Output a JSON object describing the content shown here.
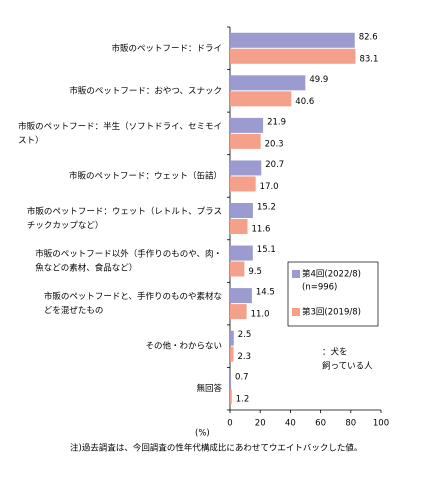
{
  "chart_data": {
    "type": "hbar",
    "categories": [
      [
        "市販のペットフード：ドライ"
      ],
      [
        "市販のペットフード：おやつ、スナック"
      ],
      [
        "市販のペットフード：半生（ソフトドライ、セミモイ",
        "スト）"
      ],
      [
        "市販のペットフード：ウェット（缶詰）"
      ],
      [
        "市販のペットフード：ウェット（レトルト、プラス",
        "チックカップなど）"
      ],
      [
        "市販のペットフード以外（手作りのものや、肉・",
        "魚などの素材、食品など）"
      ],
      [
        "市販のペットフードと、手作りのものや素材な",
        "どを混ぜたもの"
      ],
      [
        "その他・わからない"
      ],
      [
        "無回答"
      ]
    ],
    "series": [
      {
        "name": "第4回(2022/8)",
        "note": "(n=996)",
        "color": "#9b9bd0",
        "values": [
          82.6,
          49.9,
          21.9,
          20.7,
          15.2,
          15.1,
          14.5,
          2.5,
          0.7
        ],
        "value_labels": [
          "82.6",
          "49.9",
          "21.9",
          "20.7",
          "15.2",
          "15.1",
          "14.5",
          "2.5",
          "0.7"
        ]
      },
      {
        "name": "第3回(2019/8)",
        "color": "#f4a08a",
        "values": [
          83.1,
          40.6,
          20.3,
          17.0,
          11.6,
          9.5,
          11.0,
          2.3,
          1.2
        ],
        "value_labels": [
          "83.1",
          "40.6",
          "20.3",
          "17.0",
          "11.6",
          "9.5",
          "11.0",
          "2.3",
          "1.2"
        ]
      }
    ],
    "xlim": [
      0,
      100
    ],
    "xticks": [
      0,
      20,
      40,
      60,
      80,
      100
    ],
    "xlabel": "(%)",
    "annotation": [
      "：犬を",
      "飼っている人"
    ],
    "footnote": "注)過去調査は、今回調査の性年代構成比にあわせてウエイトバックした値。"
  }
}
